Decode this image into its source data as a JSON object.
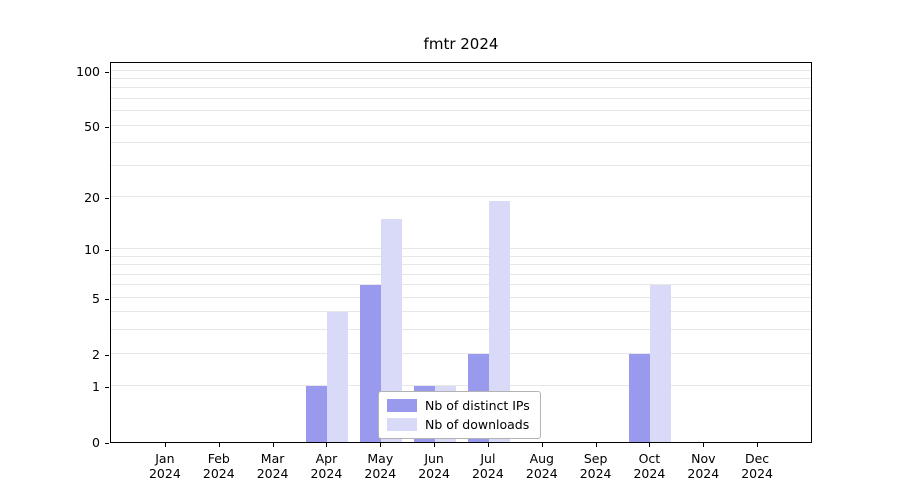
{
  "chart_data": {
    "type": "bar",
    "title": "fmtr 2024",
    "year": "2024",
    "categories": [
      "Jan",
      "Feb",
      "Mar",
      "Apr",
      "May",
      "Jun",
      "Jul",
      "Aug",
      "Sep",
      "Oct",
      "Nov",
      "Dec"
    ],
    "series": [
      {
        "name": "Nb of distinct IPs",
        "color": "#9999ee",
        "values": [
          0,
          0,
          0,
          1,
          6,
          1,
          2,
          0,
          0,
          2,
          0,
          0
        ]
      },
      {
        "name": "Nb of downloads",
        "color": "#d9d9f8",
        "values": [
          0,
          0,
          0,
          4,
          15,
          1,
          19,
          0,
          0,
          6,
          0,
          0
        ]
      }
    ],
    "yticks": [
      0,
      1,
      2,
      5,
      10,
      20,
      50,
      100
    ],
    "grid_values": [
      1,
      2,
      3,
      4,
      5,
      6,
      7,
      8,
      9,
      10,
      20,
      30,
      40,
      50,
      60,
      70,
      80,
      90,
      100
    ],
    "scale": "log1p",
    "ylim": [
      0,
      115
    ],
    "grid": true,
    "legend_position": "lower center"
  }
}
